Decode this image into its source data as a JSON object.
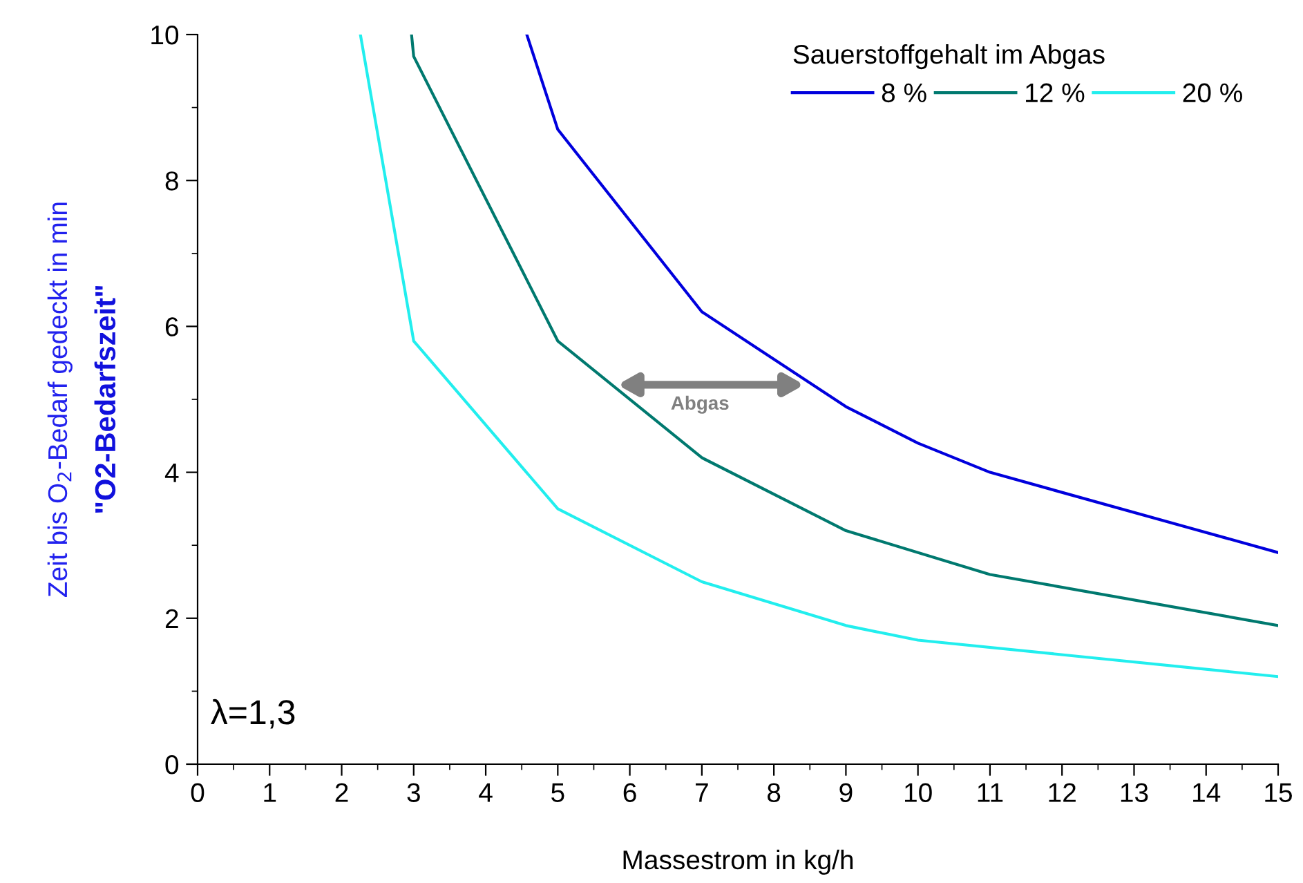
{
  "chart_data": {
    "type": "line",
    "xlabel": "Massestrom in kg/h",
    "ylabel": "Zeit bis O$_{2}$-Bedarf gedeckt in min",
    "legend_title": "Sauerstoffgehalt im Abgas",
    "legend": "top right",
    "grid": false,
    "marker": "none",
    "line_style": "solid",
    "xlim": [
      0,
      15
    ],
    "xticks": [
      0,
      1,
      2,
      3,
      4,
      5,
      6,
      7,
      8,
      9,
      10,
      11,
      12,
      13,
      14,
      15
    ],
    "ylim": [
      0,
      10
    ],
    "yticks": [
      0,
      2,
      4,
      6,
      8,
      10
    ],
    "series": [
      {
        "name": "8 %",
        "color": "#0000dd",
        "x": [
          4.57,
          5,
          7,
          9,
          10,
          11,
          15
        ],
        "values": [
          10,
          8.7,
          6.2,
          4.9,
          4.4,
          4.0,
          2.9
        ]
      },
      {
        "name": "12 %",
        "color": "#00796f",
        "x": [
          2.97,
          3,
          5,
          7,
          9,
          11,
          15
        ],
        "values": [
          10,
          9.7,
          5.8,
          4.2,
          3.2,
          2.6,
          1.9
        ]
      },
      {
        "name": "20 %",
        "color": "#22eeee",
        "x": [
          2.26,
          3,
          5,
          7,
          9,
          10,
          15
        ],
        "values": [
          10,
          5.8,
          3.5,
          2.5,
          1.9,
          1.7,
          1.2
        ]
      }
    ],
    "annotations": [
      "\"O2-Bedarfszeit\"",
      "Abgas",
      "λ=1,3"
    ]
  }
}
